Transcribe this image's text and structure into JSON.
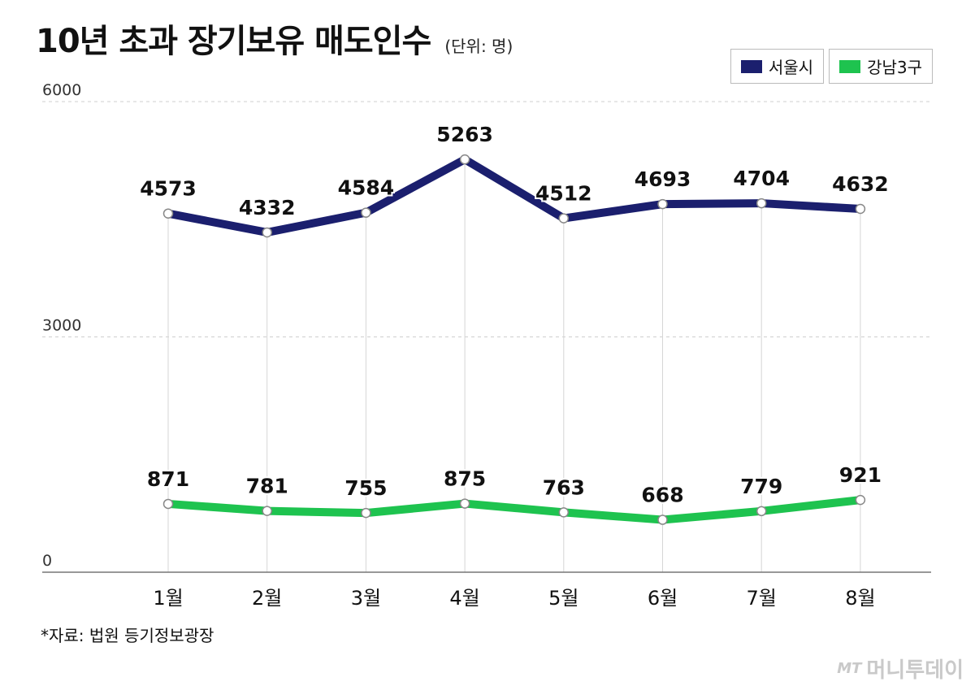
{
  "header": {
    "title": "10년 초과 장기보유 매도인수",
    "unit": "(단위: 명)"
  },
  "footer": {
    "source": "*자료: 법원 등기정보광장",
    "logo_mark": "MT",
    "logo_text": "머니투데이"
  },
  "chart_data": {
    "type": "line",
    "categories": [
      "1월",
      "2월",
      "3월",
      "4월",
      "5월",
      "6월",
      "7월",
      "8월"
    ],
    "series": [
      {
        "name": "서울시",
        "color": "#1b1f6e",
        "values": [
          4573,
          4332,
          4584,
          5263,
          4512,
          4693,
          4704,
          4632
        ]
      },
      {
        "name": "강남3구",
        "color": "#1ec34f",
        "values": [
          871,
          781,
          755,
          875,
          763,
          668,
          779,
          921
        ]
      }
    ],
    "yticks": [
      "0",
      "3000",
      "6000"
    ],
    "ylim": [
      0,
      6000
    ],
    "grid": true,
    "legend": "top-right"
  }
}
